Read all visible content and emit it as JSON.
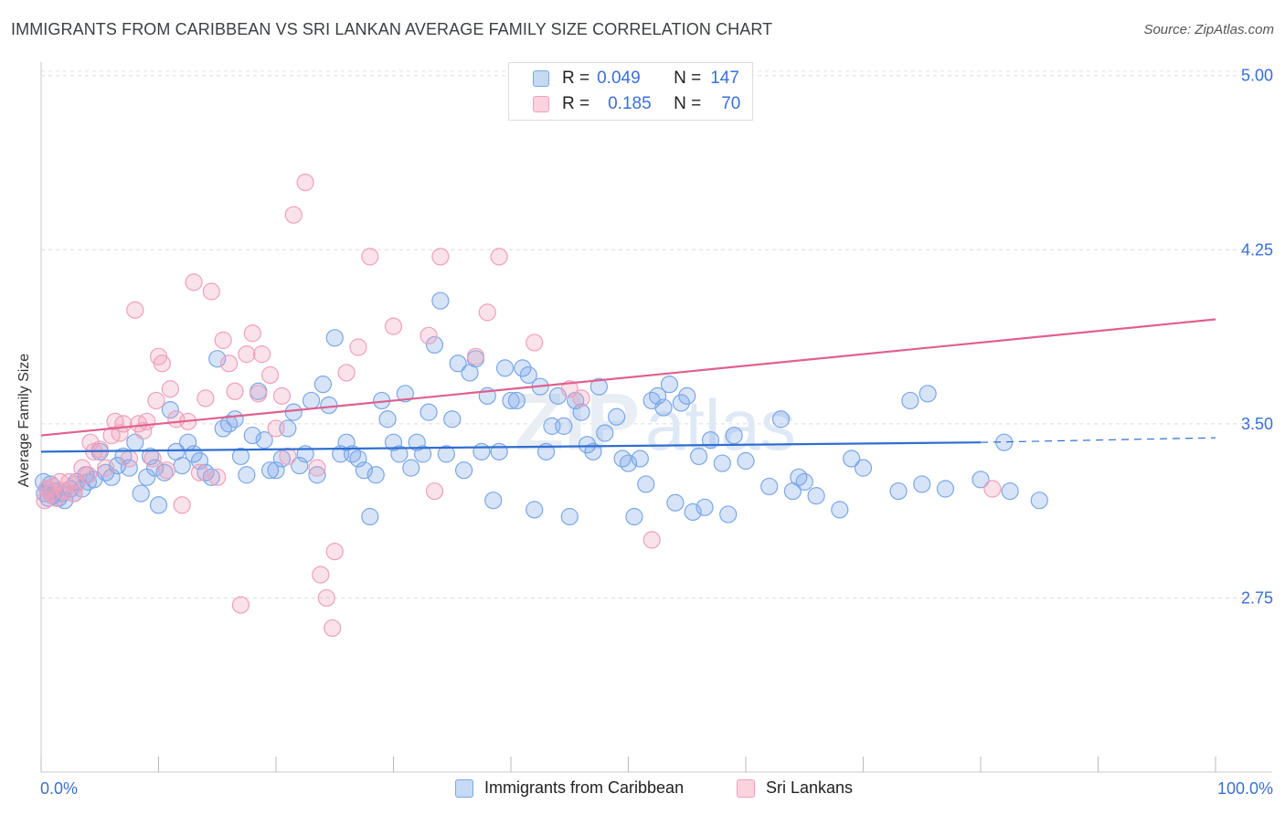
{
  "title": "IMMIGRANTS FROM CARIBBEAN VS SRI LANKAN AVERAGE FAMILY SIZE CORRELATION CHART",
  "source": "Source: ZipAtlas.com",
  "watermark": "ZIPatlas",
  "legend": {
    "rows": [
      {
        "r_label": "R =",
        "r_value": "0.049",
        "n_label": "N =",
        "n_value": "147",
        "color": "#7aa7e8"
      },
      {
        "r_label": "R =",
        "r_value": "0.185",
        "n_label": "N =",
        "n_value": "70",
        "color": "#f0a0ba"
      }
    ]
  },
  "bottom_legend": [
    {
      "label": "Immigrants from Caribbean",
      "color": "#7aa7e8"
    },
    {
      "label": "Sri Lankans",
      "color": "#f0a0ba"
    }
  ],
  "chart_data": {
    "type": "scatter",
    "title": "IMMIGRANTS FROM CARIBBEAN VS SRI LANKAN AVERAGE FAMILY SIZE CORRELATION CHART",
    "xlabel": "",
    "ylabel": "Average Family Size",
    "x_tick_labels": [
      "0.0%",
      "100.0%"
    ],
    "y_ticks": [
      2.75,
      3.5,
      4.25,
      5.0
    ],
    "y_tick_labels": [
      "2.75",
      "3.50",
      "4.25",
      "5.00"
    ],
    "xlim": [
      0,
      100
    ],
    "ylim": [
      2.0,
      5.05
    ],
    "grid": true,
    "legend_position": "top-center",
    "series": [
      {
        "name": "Immigrants from Caribbean",
        "color": "#7aa7e8",
        "line_color": "#2f6fd0",
        "trend": {
          "x": [
            0,
            80
          ],
          "y": [
            3.38,
            3.42
          ],
          "dashed_to": 100,
          "dashed_y": 3.44
        },
        "points": [
          [
            0.2,
            3.25
          ],
          [
            0.3,
            3.2
          ],
          [
            0.5,
            3.22
          ],
          [
            0.6,
            3.18
          ],
          [
            0.8,
            3.24
          ],
          [
            1.0,
            3.19
          ],
          [
            1.2,
            3.21
          ],
          [
            1.5,
            3.18
          ],
          [
            1.8,
            3.2
          ],
          [
            2.0,
            3.17
          ],
          [
            2.5,
            3.22
          ],
          [
            2.8,
            3.2
          ],
          [
            3.0,
            3.25
          ],
          [
            3.5,
            3.22
          ],
          [
            3.8,
            3.28
          ],
          [
            4.0,
            3.25
          ],
          [
            4.5,
            3.26
          ],
          [
            5.0,
            3.38
          ],
          [
            5.5,
            3.29
          ],
          [
            6.0,
            3.27
          ],
          [
            6.5,
            3.32
          ],
          [
            7.0,
            3.36
          ],
          [
            7.5,
            3.31
          ],
          [
            8.0,
            3.42
          ],
          [
            8.5,
            3.2
          ],
          [
            9.0,
            3.27
          ],
          [
            9.3,
            3.36
          ],
          [
            9.7,
            3.31
          ],
          [
            10.0,
            3.15
          ],
          [
            10.5,
            3.29
          ],
          [
            11.0,
            3.56
          ],
          [
            11.5,
            3.38
          ],
          [
            12.0,
            3.32
          ],
          [
            12.5,
            3.42
          ],
          [
            13.0,
            3.37
          ],
          [
            13.5,
            3.34
          ],
          [
            14.0,
            3.29
          ],
          [
            14.5,
            3.27
          ],
          [
            15.0,
            3.78
          ],
          [
            15.5,
            3.48
          ],
          [
            16.0,
            3.5
          ],
          [
            16.5,
            3.52
          ],
          [
            17.0,
            3.36
          ],
          [
            17.5,
            3.28
          ],
          [
            18.0,
            3.45
          ],
          [
            18.5,
            3.64
          ],
          [
            19.0,
            3.43
          ],
          [
            19.5,
            3.3
          ],
          [
            20.0,
            3.3
          ],
          [
            20.5,
            3.35
          ],
          [
            21.0,
            3.48
          ],
          [
            21.5,
            3.55
          ],
          [
            22.0,
            3.32
          ],
          [
            22.5,
            3.37
          ],
          [
            23.0,
            3.6
          ],
          [
            23.5,
            3.28
          ],
          [
            24.0,
            3.67
          ],
          [
            24.5,
            3.58
          ],
          [
            25.0,
            3.87
          ],
          [
            25.5,
            3.37
          ],
          [
            26.0,
            3.42
          ],
          [
            26.5,
            3.37
          ],
          [
            27.0,
            3.35
          ],
          [
            27.5,
            3.3
          ],
          [
            28.0,
            3.1
          ],
          [
            28.5,
            3.28
          ],
          [
            29.0,
            3.6
          ],
          [
            29.5,
            3.52
          ],
          [
            30.0,
            3.42
          ],
          [
            30.5,
            3.37
          ],
          [
            31.0,
            3.63
          ],
          [
            31.5,
            3.31
          ],
          [
            32.0,
            3.42
          ],
          [
            32.5,
            3.37
          ],
          [
            33.0,
            3.55
          ],
          [
            33.5,
            3.84
          ],
          [
            34.0,
            4.03
          ],
          [
            34.5,
            3.37
          ],
          [
            35.0,
            3.52
          ],
          [
            35.5,
            3.76
          ],
          [
            36.0,
            3.3
          ],
          [
            36.5,
            3.72
          ],
          [
            37.0,
            3.78
          ],
          [
            37.5,
            3.38
          ],
          [
            38.0,
            3.62
          ],
          [
            38.5,
            3.17
          ],
          [
            39.0,
            3.38
          ],
          [
            39.5,
            3.74
          ],
          [
            40.0,
            3.6
          ],
          [
            40.5,
            3.6
          ],
          [
            41.0,
            3.74
          ],
          [
            41.5,
            3.71
          ],
          [
            42.0,
            3.13
          ],
          [
            42.5,
            3.66
          ],
          [
            43.0,
            3.38
          ],
          [
            43.5,
            3.49
          ],
          [
            44.0,
            3.62
          ],
          [
            44.5,
            3.49
          ],
          [
            45.0,
            3.1
          ],
          [
            45.5,
            3.6
          ],
          [
            46.0,
            3.55
          ],
          [
            46.5,
            3.41
          ],
          [
            47.0,
            3.38
          ],
          [
            47.5,
            3.66
          ],
          [
            48.0,
            3.46
          ],
          [
            49.0,
            3.53
          ],
          [
            49.5,
            3.35
          ],
          [
            50.0,
            3.33
          ],
          [
            50.5,
            3.1
          ],
          [
            51.0,
            3.35
          ],
          [
            51.5,
            3.24
          ],
          [
            52.0,
            3.6
          ],
          [
            52.5,
            3.62
          ],
          [
            53.0,
            3.57
          ],
          [
            53.5,
            3.67
          ],
          [
            54.0,
            3.16
          ],
          [
            54.5,
            3.59
          ],
          [
            55.0,
            3.62
          ],
          [
            55.5,
            3.12
          ],
          [
            56.0,
            3.36
          ],
          [
            56.5,
            3.14
          ],
          [
            57.0,
            3.43
          ],
          [
            58.0,
            3.33
          ],
          [
            58.5,
            3.11
          ],
          [
            59.0,
            3.45
          ],
          [
            60.0,
            3.34
          ],
          [
            62.0,
            3.23
          ],
          [
            63.0,
            3.52
          ],
          [
            64.0,
            3.21
          ],
          [
            64.5,
            3.27
          ],
          [
            65.0,
            3.25
          ],
          [
            66.0,
            3.19
          ],
          [
            68.0,
            3.13
          ],
          [
            69.0,
            3.35
          ],
          [
            70.0,
            3.31
          ],
          [
            73.0,
            3.21
          ],
          [
            74.0,
            3.6
          ],
          [
            75.0,
            3.24
          ],
          [
            75.5,
            3.63
          ],
          [
            77.0,
            3.22
          ],
          [
            80.0,
            3.26
          ],
          [
            82.0,
            3.42
          ],
          [
            82.5,
            3.21
          ],
          [
            85.0,
            3.17
          ]
        ]
      },
      {
        "name": "Sri Lankans",
        "color": "#f0a0ba",
        "line_color": "#e0608e",
        "trend": {
          "x": [
            0,
            100
          ],
          "y": [
            3.45,
            3.95
          ]
        },
        "points": [
          [
            0.3,
            3.17
          ],
          [
            0.5,
            3.22
          ],
          [
            0.8,
            3.2
          ],
          [
            1.0,
            3.23
          ],
          [
            1.3,
            3.18
          ],
          [
            1.6,
            3.25
          ],
          [
            2.0,
            3.21
          ],
          [
            2.4,
            3.25
          ],
          [
            2.8,
            3.2
          ],
          [
            3.0,
            3.24
          ],
          [
            3.5,
            3.31
          ],
          [
            4.0,
            3.28
          ],
          [
            4.2,
            3.42
          ],
          [
            4.5,
            3.38
          ],
          [
            5.0,
            3.39
          ],
          [
            5.5,
            3.31
          ],
          [
            6.0,
            3.45
          ],
          [
            6.3,
            3.51
          ],
          [
            6.7,
            3.46
          ],
          [
            7.0,
            3.5
          ],
          [
            7.5,
            3.35
          ],
          [
            8.0,
            3.99
          ],
          [
            8.3,
            3.5
          ],
          [
            8.7,
            3.47
          ],
          [
            9.0,
            3.51
          ],
          [
            9.5,
            3.35
          ],
          [
            9.8,
            3.6
          ],
          [
            10.0,
            3.79
          ],
          [
            10.3,
            3.76
          ],
          [
            10.7,
            3.3
          ],
          [
            11.0,
            3.65
          ],
          [
            11.5,
            3.52
          ],
          [
            12.0,
            3.15
          ],
          [
            12.5,
            3.51
          ],
          [
            13.0,
            4.11
          ],
          [
            13.5,
            3.29
          ],
          [
            14.0,
            3.61
          ],
          [
            14.5,
            4.07
          ],
          [
            15.0,
            3.27
          ],
          [
            15.5,
            3.86
          ],
          [
            16.0,
            3.76
          ],
          [
            16.5,
            3.64
          ],
          [
            17.0,
            2.72
          ],
          [
            17.5,
            3.8
          ],
          [
            18.0,
            3.89
          ],
          [
            18.5,
            3.63
          ],
          [
            18.8,
            3.8
          ],
          [
            19.5,
            3.71
          ],
          [
            20.0,
            3.48
          ],
          [
            20.5,
            3.62
          ],
          [
            21.0,
            3.36
          ],
          [
            21.5,
            4.4
          ],
          [
            22.5,
            4.54
          ],
          [
            23.5,
            3.31
          ],
          [
            23.8,
            2.85
          ],
          [
            24.3,
            2.75
          ],
          [
            24.8,
            2.62
          ],
          [
            25.0,
            2.95
          ],
          [
            26.0,
            3.72
          ],
          [
            27.0,
            3.83
          ],
          [
            28.0,
            4.22
          ],
          [
            30.0,
            3.92
          ],
          [
            33.0,
            3.88
          ],
          [
            33.5,
            3.21
          ],
          [
            34.0,
            4.22
          ],
          [
            37.0,
            3.79
          ],
          [
            38.0,
            3.98
          ],
          [
            39.0,
            4.22
          ],
          [
            42.0,
            3.85
          ],
          [
            45.0,
            3.65
          ],
          [
            46.0,
            3.61
          ],
          [
            52.0,
            3.0
          ],
          [
            81.0,
            3.22
          ]
        ]
      }
    ]
  }
}
